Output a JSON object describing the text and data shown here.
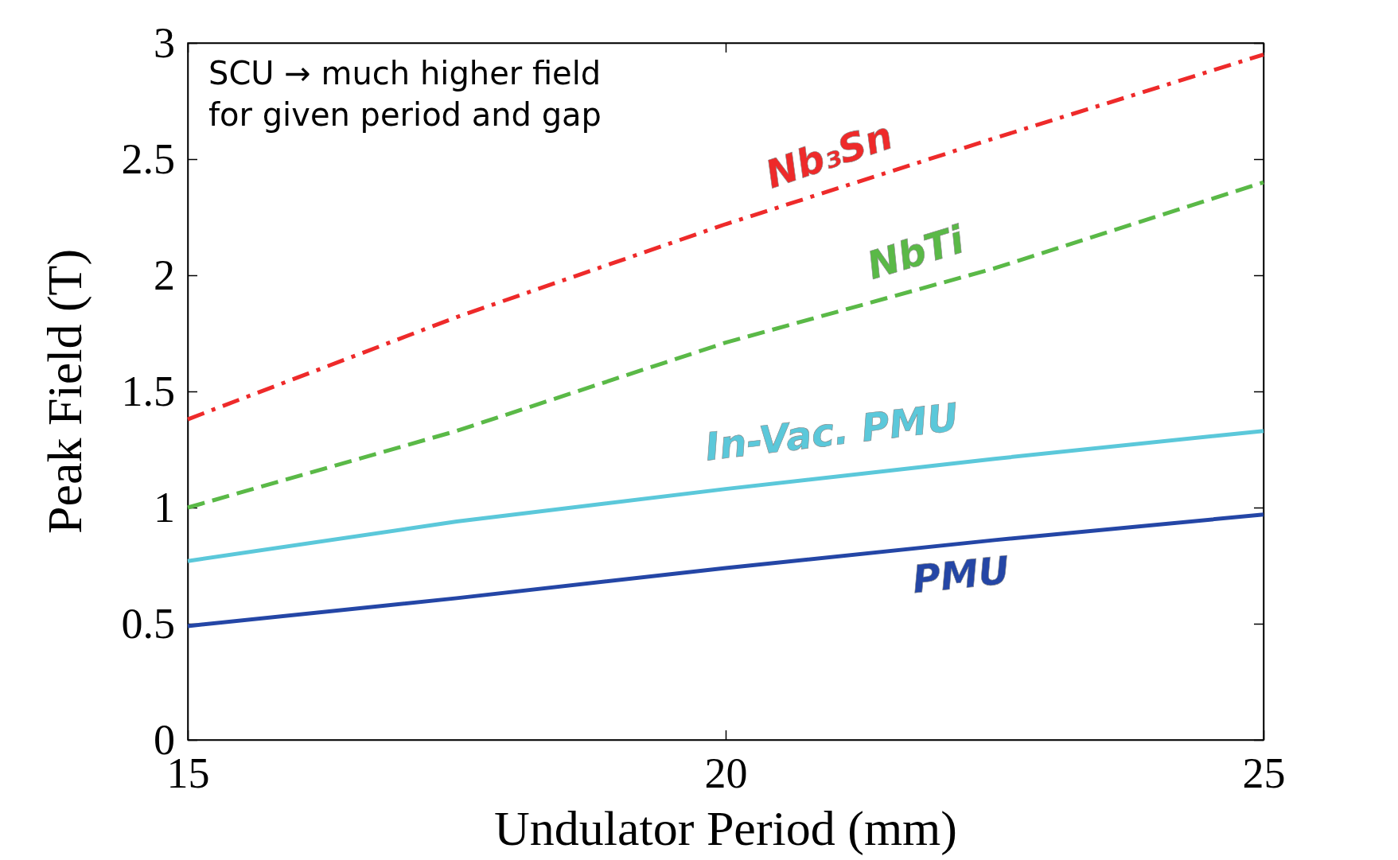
{
  "chart_data": {
    "type": "line",
    "xlabel": "Undulator Period (mm)",
    "ylabel": "Peak Field (T)",
    "x": [
      15,
      17.5,
      20,
      22.5,
      25
    ],
    "series": [
      {
        "name": "Nb₃Sn",
        "color": "#ee2a2a",
        "line_style": "dashdot",
        "values": [
          1.38,
          1.82,
          2.22,
          2.59,
          2.95
        ]
      },
      {
        "name": "NbTi",
        "color": "#5ab947",
        "line_style": "dashed",
        "values": [
          1.0,
          1.33,
          1.71,
          2.03,
          2.4
        ]
      },
      {
        "name": "In-Vac. PMU",
        "color": "#5bc8da",
        "line_style": "solid",
        "values": [
          0.77,
          0.94,
          1.08,
          1.21,
          1.33
        ]
      },
      {
        "name": "PMU",
        "color": "#2446a6",
        "line_style": "solid",
        "values": [
          0.49,
          0.61,
          0.74,
          0.86,
          0.97
        ]
      }
    ],
    "xlim": [
      15,
      25
    ],
    "xticks": [
      15,
      20,
      25
    ],
    "ylim": [
      0,
      3
    ],
    "yticks": [
      0,
      0.5,
      1,
      1.5,
      2,
      2.5,
      3
    ],
    "grid": false,
    "marker": "none",
    "annotations": [
      "SCU → much higher field for given period and gap"
    ]
  }
}
